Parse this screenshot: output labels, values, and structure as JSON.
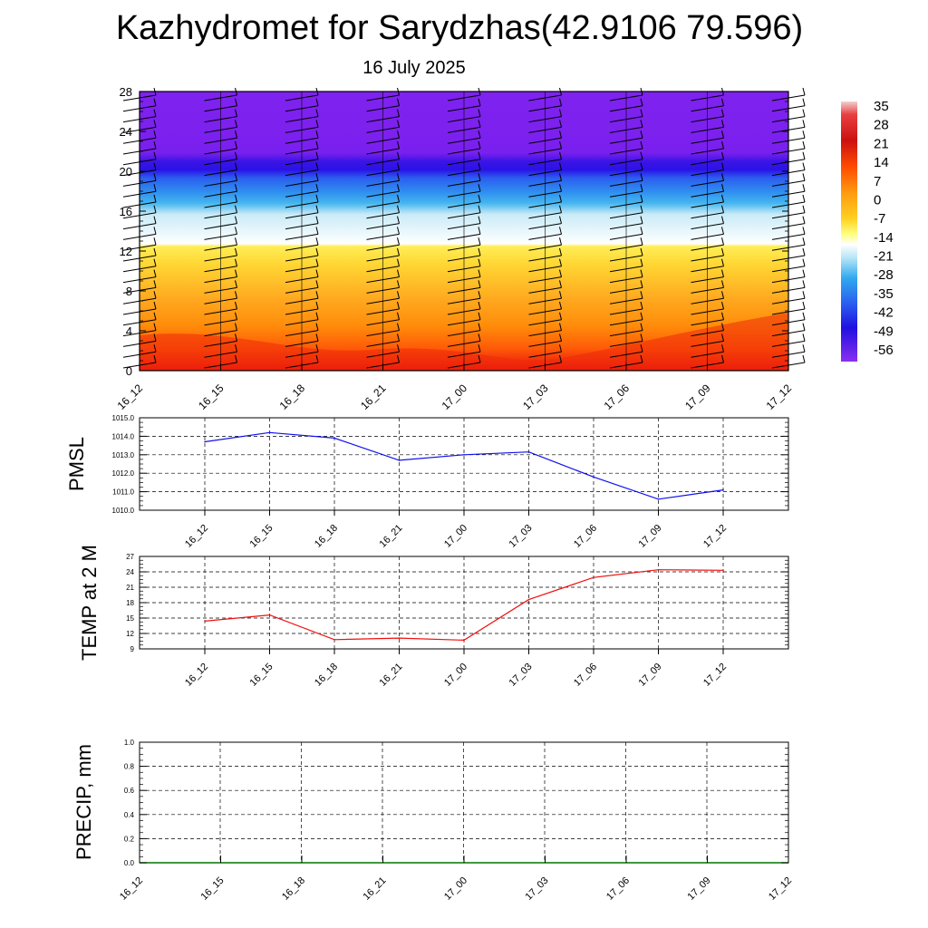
{
  "title": "Kazhydromet for Sarydzhas(42.9106 79.596)",
  "subtitle": "16 July 2025",
  "chart_data": [
    {
      "type": "heatmap",
      "x_tick_labels": [
        "16_12",
        "16_15",
        "16_18",
        "16_21",
        "17_00",
        "17_03",
        "17_06",
        "17_09",
        "17_12"
      ],
      "y_ticks": [
        0,
        4,
        8,
        12,
        16,
        20,
        24,
        28
      ],
      "ylim": [
        0,
        28
      ],
      "colorbar_labels": [
        "35",
        "28",
        "21",
        "14",
        "7",
        "0",
        "-7",
        "-14",
        "-21",
        "-28",
        "-35",
        "-42",
        "-49",
        "-56"
      ],
      "colors": {
        "top": "#7f22ef",
        "tropopause": "#2a12e6",
        "upper_cold": "#2f8ff0",
        "freezing_band": "#ffffff",
        "mid_warm": "#ffd633",
        "lower_warm": "#ff8c0a",
        "surface": "#e81010"
      }
    },
    {
      "type": "line",
      "ylabel": "PMSL",
      "categories": [
        "16_12",
        "16_15",
        "16_18",
        "16_21",
        "17_00",
        "17_03",
        "17_06",
        "17_09",
        "17_12"
      ],
      "values": [
        1013.7,
        1014.2,
        1013.9,
        1012.7,
        1013.0,
        1013.15,
        1011.8,
        1010.6,
        1011.1
      ],
      "y_tick_labels": [
        "1010.0",
        "1011.0",
        "1012.0",
        "1013.0",
        "1014.0",
        "1015.0"
      ],
      "ylim": [
        1010,
        1015
      ],
      "grid": true,
      "color": "#1010ee"
    },
    {
      "type": "line",
      "ylabel": "TEMP at 2 M",
      "categories": [
        "16_12",
        "16_15",
        "16_18",
        "16_21",
        "17_00",
        "17_03",
        "17_06",
        "17_09",
        "17_12"
      ],
      "values": [
        14.4,
        15.6,
        10.8,
        11.1,
        10.7,
        18.6,
        22.9,
        24.4,
        24.3
      ],
      "y_tick_labels": [
        "9",
        "12",
        "15",
        "18",
        "21",
        "24",
        "27"
      ],
      "ylim": [
        9,
        27
      ],
      "grid": true,
      "color": "#ee1010"
    },
    {
      "type": "line",
      "ylabel": "PRECIP, mm",
      "x_tick_labels": [
        "16_12",
        "16_15",
        "16_18",
        "16_21",
        "17_00",
        "17_03",
        "17_06",
        "17_09",
        "17_12"
      ],
      "values": [
        0,
        0,
        0,
        0,
        0,
        0,
        0,
        0,
        0
      ],
      "y_tick_labels": [
        "0.0",
        "0.2",
        "0.4",
        "0.6",
        "0.8",
        "1.0"
      ],
      "ylim": [
        0,
        1
      ],
      "grid": true,
      "color": "#007700"
    }
  ]
}
